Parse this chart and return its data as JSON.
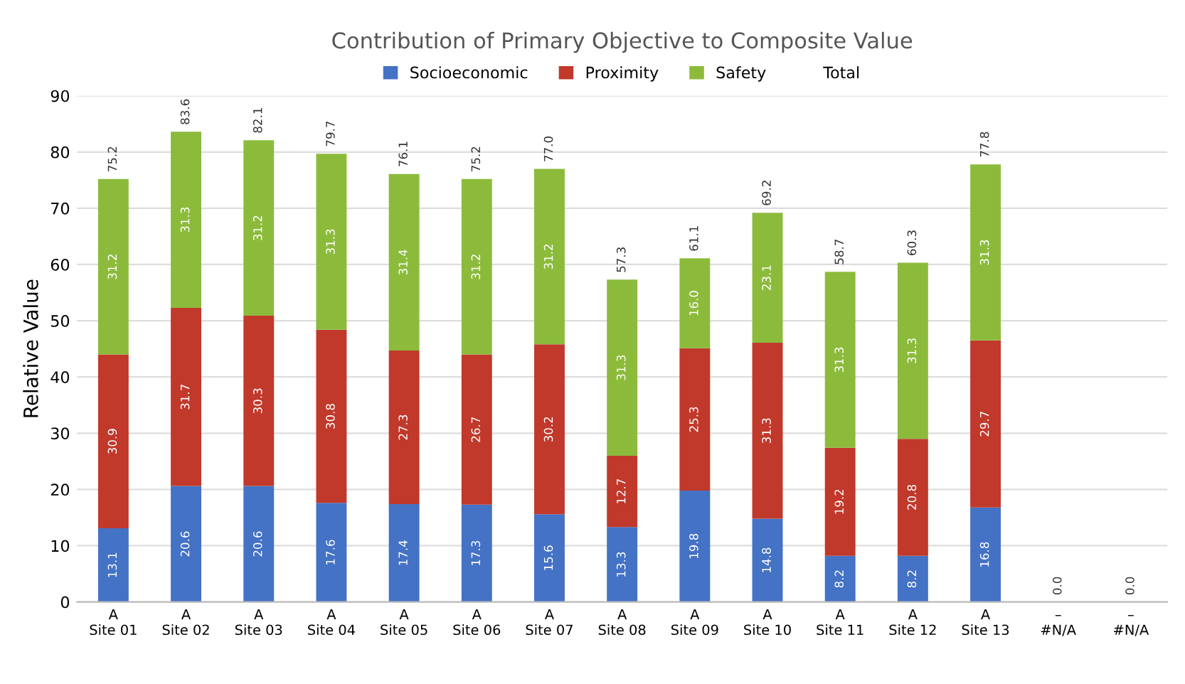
{
  "chart_data": {
    "type": "bar",
    "title": "Contribution of Primary Objective to Composite Value",
    "ylabel": "Relative Value",
    "categories": [
      "A\nSite 01",
      "A\nSite 02",
      "A\nSite 03",
      "A\nSite 04",
      "A\nSite 05",
      "A\nSite 06",
      "A\nSite 07",
      "A\nSite 08",
      "A\nSite 09",
      "A\nSite 10",
      "A\nSite 11",
      "A\nSite 12",
      "A\nSite 13",
      "–\n#N/A",
      "–\n#N/A"
    ],
    "stacked": true,
    "series": [
      {
        "name": "Socioeconomic",
        "color": "#4472c4",
        "values": [
          13.1,
          20.6,
          20.6,
          17.6,
          17.4,
          17.3,
          15.6,
          13.3,
          19.8,
          14.8,
          8.2,
          8.2,
          16.8,
          null,
          null
        ],
        "value_labels": [
          "13.1",
          "20.6",
          "20.6",
          "17.6",
          "17.4",
          "17.3",
          "15.6",
          "13.3",
          "19.8",
          "14.8",
          "8.2",
          "8.2",
          "16.8",
          null,
          null
        ]
      },
      {
        "name": "Proximity",
        "color": "#c0392b",
        "values": [
          30.9,
          31.7,
          30.3,
          30.8,
          27.3,
          26.7,
          30.2,
          12.7,
          25.3,
          31.3,
          19.2,
          20.8,
          29.7,
          null,
          null
        ],
        "value_labels": [
          "30.9",
          "31.7",
          "30.3",
          "30.8",
          "27.3",
          "26.7",
          "30.2",
          "12.7",
          "25.3",
          "31.3",
          "19.2",
          "20.8",
          "29.7",
          null,
          null
        ]
      },
      {
        "name": "Safety",
        "color": "#8cbb3c",
        "values": [
          31.2,
          31.3,
          31.2,
          31.3,
          31.4,
          31.2,
          31.2,
          31.3,
          16.0,
          23.1,
          31.3,
          31.3,
          31.3,
          null,
          null
        ],
        "value_labels": [
          "31.2",
          "31.3",
          "31.2",
          "31.3",
          "31.4",
          "31.2",
          "31.2",
          "31.3",
          "16.0",
          "23.1",
          "31.3",
          "31.3",
          "31.3",
          null,
          null
        ]
      }
    ],
    "totals": [
      "75.2",
      "83.6",
      "82.1",
      "79.7",
      "76.1",
      "75.2",
      "77.0",
      "57.3",
      "61.1",
      "69.2",
      "58.7",
      "60.3",
      "77.8",
      "0.0",
      "0.0"
    ],
    "annotations": [
      "Total"
    ],
    "ylim": [
      0,
      90
    ],
    "yticks": [
      0,
      10,
      20,
      30,
      40,
      50,
      60,
      70,
      80,
      90
    ],
    "grid": "y",
    "legend": "top"
  }
}
